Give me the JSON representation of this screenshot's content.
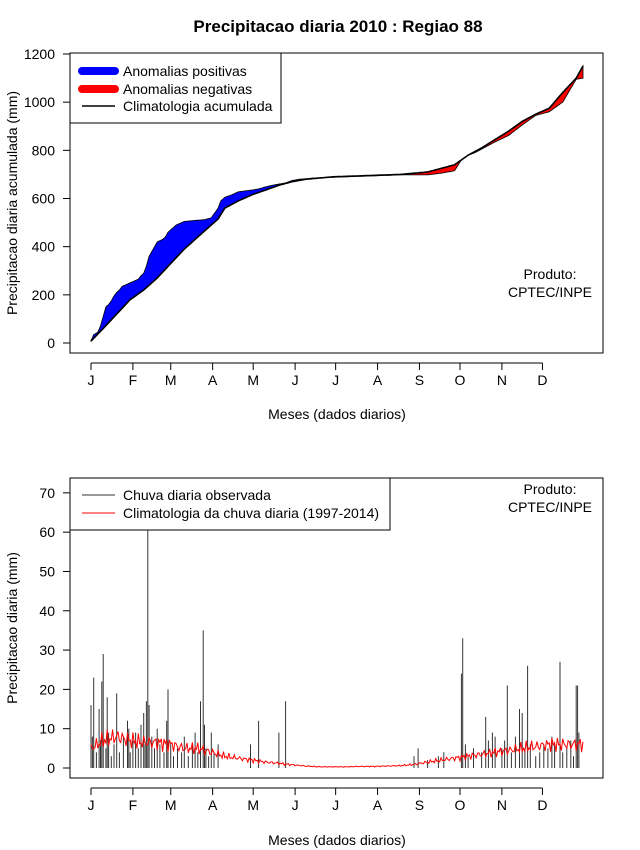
{
  "chart_data": [
    {
      "type": "area",
      "title": "Precipitacao diaria 2010 : Regiao 88",
      "xlabel": "Meses (dados diarios)",
      "ylabel": "Precipitacao diaria acumulada (mm)",
      "xlim": [
        1,
        365
      ],
      "ylim": [
        0,
        1200
      ],
      "yticks": [
        0,
        200,
        400,
        600,
        800,
        1000,
        1200
      ],
      "months": [
        "J",
        "F",
        "M",
        "A",
        "M",
        "J",
        "J",
        "A",
        "S",
        "O",
        "N",
        "D"
      ],
      "month_day": [
        1,
        32,
        60,
        91,
        121,
        152,
        182,
        213,
        244,
        274,
        305,
        335
      ],
      "legend": [
        "Anomalias positivas",
        "Anomalias negativas",
        "Climatologia acumulada"
      ],
      "colors": {
        "positive": "#0000ff",
        "negative": "#ff0000",
        "climatology": "#000000"
      },
      "annotation": [
        "Produto:",
        "CPTEC/INPE"
      ],
      "climatology": [
        [
          1,
          8
        ],
        [
          10,
          60
        ],
        [
          20,
          120
        ],
        [
          30,
          180
        ],
        [
          40,
          220
        ],
        [
          50,
          270
        ],
        [
          60,
          330
        ],
        [
          70,
          390
        ],
        [
          80,
          440
        ],
        [
          90,
          490
        ],
        [
          95,
          515
        ],
        [
          100,
          560
        ],
        [
          110,
          590
        ],
        [
          120,
          615
        ],
        [
          130,
          635
        ],
        [
          140,
          655
        ],
        [
          150,
          670
        ],
        [
          160,
          680
        ],
        [
          170,
          685
        ],
        [
          180,
          690
        ],
        [
          190,
          692
        ],
        [
          200,
          694
        ],
        [
          210,
          696
        ],
        [
          220,
          698
        ],
        [
          230,
          700
        ],
        [
          240,
          705
        ],
        [
          250,
          710
        ],
        [
          260,
          725
        ],
        [
          270,
          740
        ],
        [
          275,
          760
        ],
        [
          280,
          780
        ],
        [
          290,
          810
        ],
        [
          300,
          845
        ],
        [
          310,
          880
        ],
        [
          320,
          920
        ],
        [
          330,
          950
        ],
        [
          340,
          975
        ],
        [
          350,
          1040
        ],
        [
          360,
          1100
        ],
        [
          365,
          1150
        ]
      ],
      "observed": [
        [
          1,
          10
        ],
        [
          3,
          35
        ],
        [
          6,
          45
        ],
        [
          8,
          70
        ],
        [
          10,
          110
        ],
        [
          12,
          150
        ],
        [
          14,
          160
        ],
        [
          16,
          175
        ],
        [
          18,
          195
        ],
        [
          20,
          210
        ],
        [
          22,
          220
        ],
        [
          24,
          235
        ],
        [
          26,
          240
        ],
        [
          28,
          245
        ],
        [
          30,
          250
        ],
        [
          32,
          255
        ],
        [
          34,
          260
        ],
        [
          36,
          265
        ],
        [
          38,
          280
        ],
        [
          40,
          290
        ],
        [
          42,
          320
        ],
        [
          44,
          360
        ],
        [
          46,
          380
        ],
        [
          48,
          400
        ],
        [
          50,
          420
        ],
        [
          52,
          425
        ],
        [
          54,
          430
        ],
        [
          56,
          440
        ],
        [
          58,
          460
        ],
        [
          60,
          470
        ],
        [
          62,
          480
        ],
        [
          64,
          490
        ],
        [
          66,
          495
        ],
        [
          68,
          500
        ],
        [
          70,
          505
        ],
        [
          80,
          510
        ],
        [
          85,
          512
        ],
        [
          90,
          520
        ],
        [
          95,
          560
        ],
        [
          97,
          590
        ],
        [
          100,
          605
        ],
        [
          105,
          615
        ],
        [
          110,
          628
        ],
        [
          120,
          635
        ],
        [
          125,
          640
        ],
        [
          130,
          648
        ],
        [
          135,
          655
        ],
        [
          140,
          660
        ],
        [
          145,
          665
        ],
        [
          150,
          675
        ],
        [
          155,
          680
        ],
        [
          160,
          682
        ],
        [
          165,
          685
        ],
        [
          170,
          686
        ],
        [
          180,
          688
        ],
        [
          190,
          690
        ],
        [
          200,
          692
        ],
        [
          210,
          694
        ],
        [
          220,
          696
        ],
        [
          230,
          698
        ],
        [
          240,
          698
        ],
        [
          250,
          698
        ],
        [
          260,
          705
        ],
        [
          265,
          710
        ],
        [
          270,
          715
        ],
        [
          275,
          760
        ],
        [
          280,
          780
        ],
        [
          285,
          790
        ],
        [
          290,
          805
        ],
        [
          300,
          835
        ],
        [
          310,
          862
        ],
        [
          320,
          905
        ],
        [
          330,
          945
        ],
        [
          340,
          960
        ],
        [
          350,
          1000
        ],
        [
          360,
          1095
        ],
        [
          365,
          1100
        ]
      ],
      "negative_band_top": [
        [
          230,
          700
        ],
        [
          240,
          705
        ],
        [
          250,
          710
        ],
        [
          260,
          725
        ],
        [
          270,
          740
        ],
        [
          275,
          760
        ],
        [
          280,
          780
        ],
        [
          290,
          810
        ],
        [
          300,
          845
        ],
        [
          310,
          880
        ],
        [
          320,
          920
        ],
        [
          330,
          950
        ],
        [
          340,
          975
        ],
        [
          350,
          1040
        ],
        [
          360,
          1100
        ],
        [
          365,
          1150
        ]
      ]
    },
    {
      "type": "bar",
      "xlabel": "Meses (dados diarios)",
      "ylabel": "Precipitacao diaria (mm)",
      "xlim": [
        1,
        365
      ],
      "ylim": [
        0,
        72
      ],
      "yticks": [
        0,
        10,
        20,
        30,
        40,
        50,
        60,
        70
      ],
      "months": [
        "J",
        "F",
        "M",
        "A",
        "M",
        "J",
        "J",
        "A",
        "S",
        "O",
        "N",
        "D"
      ],
      "month_day": [
        1,
        32,
        60,
        91,
        121,
        152,
        182,
        213,
        244,
        274,
        305,
        335
      ],
      "legend": [
        "Chuva diaria observada",
        "Climatologia da chuva diaria (1997-2014)"
      ],
      "colors": {
        "observed": "#333333",
        "climatology": "#ff0000"
      },
      "annotation": [
        "Produto:",
        "CPTEC/INPE"
      ],
      "observed_days": [
        [
          1,
          16
        ],
        [
          2,
          8
        ],
        [
          3,
          23
        ],
        [
          5,
          4
        ],
        [
          7,
          15
        ],
        [
          8,
          7
        ],
        [
          9,
          22
        ],
        [
          10,
          29
        ],
        [
          12,
          5
        ],
        [
          13,
          18
        ],
        [
          14,
          9
        ],
        [
          16,
          3
        ],
        [
          18,
          6
        ],
        [
          20,
          19
        ],
        [
          22,
          4
        ],
        [
          25,
          8
        ],
        [
          28,
          12
        ],
        [
          29,
          10
        ],
        [
          30,
          4
        ],
        [
          32,
          7
        ],
        [
          34,
          9
        ],
        [
          36,
          5
        ],
        [
          38,
          11
        ],
        [
          40,
          14
        ],
        [
          41,
          6
        ],
        [
          42,
          17
        ],
        [
          43,
          62
        ],
        [
          44,
          16
        ],
        [
          46,
          8
        ],
        [
          48,
          5
        ],
        [
          50,
          10
        ],
        [
          52,
          6
        ],
        [
          55,
          4
        ],
        [
          57,
          12
        ],
        [
          58,
          20
        ],
        [
          60,
          6
        ],
        [
          62,
          3
        ],
        [
          65,
          5
        ],
        [
          68,
          4
        ],
        [
          70,
          8
        ],
        [
          73,
          3
        ],
        [
          76,
          6
        ],
        [
          78,
          9
        ],
        [
          80,
          4
        ],
        [
          82,
          17
        ],
        [
          84,
          35
        ],
        [
          85,
          11
        ],
        [
          86,
          5
        ],
        [
          88,
          3
        ],
        [
          90,
          9
        ],
        [
          92,
          4
        ],
        [
          95,
          6
        ],
        [
          119,
          6
        ],
        [
          125,
          12
        ],
        [
          140,
          9
        ],
        [
          145,
          17
        ],
        [
          240,
          3
        ],
        [
          243,
          5
        ],
        [
          250,
          2
        ],
        [
          258,
          3
        ],
        [
          262,
          4
        ],
        [
          275,
          24
        ],
        [
          276,
          33
        ],
        [
          278,
          6
        ],
        [
          280,
          3
        ],
        [
          284,
          5
        ],
        [
          290,
          4
        ],
        [
          293,
          13
        ],
        [
          295,
          7
        ],
        [
          298,
          9
        ],
        [
          300,
          8
        ],
        [
          305,
          5
        ],
        [
          307,
          7
        ],
        [
          309,
          21
        ],
        [
          312,
          4
        ],
        [
          315,
          8
        ],
        [
          318,
          15
        ],
        [
          320,
          14
        ],
        [
          322,
          5
        ],
        [
          324,
          26
        ],
        [
          326,
          6
        ],
        [
          330,
          3
        ],
        [
          333,
          4
        ],
        [
          336,
          6
        ],
        [
          339,
          5
        ],
        [
          342,
          8
        ],
        [
          344,
          6
        ],
        [
          348,
          27
        ],
        [
          350,
          4
        ],
        [
          353,
          5
        ],
        [
          356,
          7
        ],
        [
          358,
          3
        ],
        [
          360,
          21
        ],
        [
          361,
          21
        ],
        [
          362,
          9
        ]
      ],
      "climatology_knots": [
        [
          1,
          5
        ],
        [
          10,
          7
        ],
        [
          20,
          8
        ],
        [
          30,
          7
        ],
        [
          40,
          6.5
        ],
        [
          50,
          6.5
        ],
        [
          60,
          6
        ],
        [
          70,
          5
        ],
        [
          80,
          5
        ],
        [
          90,
          4
        ],
        [
          100,
          3
        ],
        [
          110,
          2.5
        ],
        [
          120,
          2
        ],
        [
          130,
          1.5
        ],
        [
          140,
          1.2
        ],
        [
          150,
          0.8
        ],
        [
          160,
          0.5
        ],
        [
          170,
          0.3
        ],
        [
          180,
          0.3
        ],
        [
          190,
          0.3
        ],
        [
          200,
          0.4
        ],
        [
          210,
          0.4
        ],
        [
          220,
          0.5
        ],
        [
          230,
          0.6
        ],
        [
          240,
          0.9
        ],
        [
          250,
          1.5
        ],
        [
          260,
          2
        ],
        [
          270,
          2.5
        ],
        [
          280,
          3
        ],
        [
          290,
          3.5
        ],
        [
          300,
          4
        ],
        [
          310,
          4.5
        ],
        [
          320,
          5
        ],
        [
          330,
          5.5
        ],
        [
          340,
          6
        ],
        [
          350,
          6
        ],
        [
          360,
          6
        ],
        [
          365,
          6
        ]
      ]
    }
  ]
}
